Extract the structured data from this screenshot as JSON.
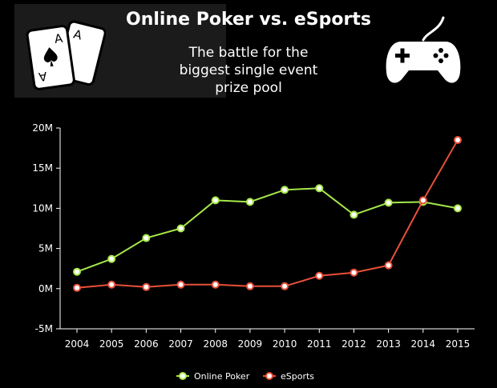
{
  "header": {
    "title": "Online Poker vs. eSports",
    "subtitle_lines": [
      "The battle for the",
      "biggest single event",
      "prize pool"
    ]
  },
  "icons": {
    "left": "playing-cards-aces",
    "right": "game-controller"
  },
  "colors": {
    "background": "#000000",
    "poker": "#a6e84a",
    "esports": "#e8503a",
    "axis": "#ffffff"
  },
  "chart_data": {
    "type": "line",
    "title": "Online Poker vs. eSports",
    "subtitle": "The battle for the biggest single event prize pool",
    "xlabel": "",
    "ylabel": "",
    "x": [
      "2004",
      "2005",
      "2006",
      "2007",
      "2008",
      "2009",
      "2010",
      "2011",
      "2012",
      "2013",
      "2014",
      "2015"
    ],
    "ylim": [
      -5000000,
      20000000
    ],
    "yticks": [
      -5000000,
      0,
      5000000,
      10000000,
      15000000,
      20000000
    ],
    "ytick_labels": [
      "-5M",
      "0M",
      "5M",
      "10M",
      "15M",
      "20M"
    ],
    "grid": false,
    "legend": "bottom-center",
    "series": [
      {
        "name": "Online Poker",
        "color": "#a6e84a",
        "values": [
          2100000,
          3700000,
          6300000,
          7500000,
          11000000,
          10800000,
          12300000,
          12500000,
          9200000,
          10700000,
          10800000,
          10000000
        ]
      },
      {
        "name": "eSports",
        "color": "#e8503a",
        "values": [
          100000,
          500000,
          200000,
          500000,
          500000,
          300000,
          300000,
          1600000,
          2000000,
          2900000,
          11000000,
          18500000
        ]
      }
    ]
  }
}
